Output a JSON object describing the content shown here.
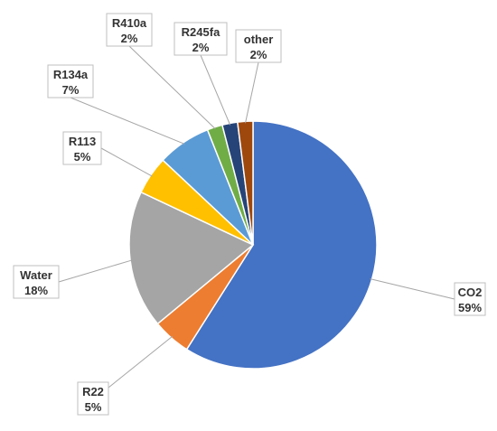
{
  "chart_data": {
    "type": "pie",
    "title": "",
    "slices": [
      {
        "name": "CO2",
        "value": 59,
        "label": "59%",
        "color": "#4472C4"
      },
      {
        "name": "R22",
        "value": 5,
        "label": "5%",
        "color": "#ED7D31"
      },
      {
        "name": "Water",
        "value": 18,
        "label": "18%",
        "color": "#A5A5A5"
      },
      {
        "name": "R113",
        "value": 5,
        "label": "5%",
        "color": "#FFC000"
      },
      {
        "name": "R134a",
        "value": 7,
        "label": "7%",
        "color": "#5B9BD5"
      },
      {
        "name": "R410a",
        "value": 2,
        "label": "2%",
        "color": "#70AD47"
      },
      {
        "name": "R245fa",
        "value": 2,
        "label": "2%",
        "color": "#264478"
      },
      {
        "name": "other",
        "value": 2,
        "label": "2%",
        "color": "#9E480E"
      }
    ],
    "start_angle_deg": 0,
    "direction": "clockwise",
    "legend": "none",
    "data_labels": "outside with leader lines"
  }
}
